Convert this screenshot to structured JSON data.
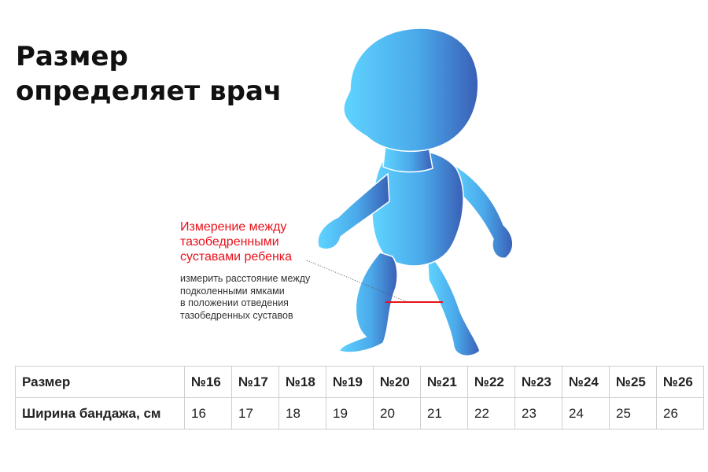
{
  "title": {
    "line1": "Размер",
    "line2": "определяет врач"
  },
  "annotation": {
    "heading_lines": [
      "Измерение между",
      "тазобедренными",
      "суставами ребенка"
    ],
    "note_lines": [
      "измерить расстояние между",
      "подколенными ямками",
      "в положении отведения",
      "тазобедренных суставов"
    ]
  },
  "colors": {
    "accent_red": "#e8121b",
    "baby_light": "#5cd1ff",
    "baby_dark": "#3d63b8"
  },
  "size_table": {
    "header_label": "Размер",
    "sizes": [
      "№16",
      "№17",
      "№18",
      "№19",
      "№20",
      "№21",
      "№22",
      "№23",
      "№24",
      "№25",
      "№26"
    ],
    "width_label": "Ширина бандажа, см",
    "widths": [
      "16",
      "17",
      "18",
      "19",
      "20",
      "21",
      "22",
      "23",
      "24",
      "25",
      "26"
    ]
  }
}
